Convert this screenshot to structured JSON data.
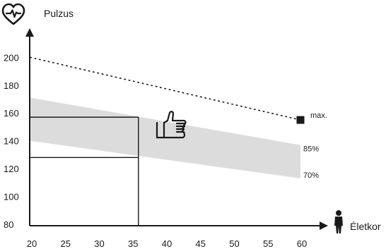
{
  "chart_data": {
    "type": "line",
    "ylabel": "Pulzus",
    "xlabel": "Életkor",
    "x": [
      20,
      25,
      30,
      35,
      40,
      45,
      50,
      55,
      60
    ],
    "y_ticks": [
      80,
      100,
      120,
      140,
      160,
      180,
      200
    ],
    "xlim": [
      20,
      64
    ],
    "ylim": [
      70,
      210
    ],
    "max_line": {
      "label": "max.",
      "points": [
        [
          20,
          200
        ],
        [
          60,
          155
        ]
      ],
      "style": "dotted"
    },
    "zone": {
      "upper": {
        "label": "85%",
        "points": [
          [
            20,
            171
          ],
          [
            60,
            137
          ]
        ]
      },
      "lower": {
        "label": "70%",
        "points": [
          [
            20,
            140
          ],
          [
            60,
            113
          ]
        ]
      },
      "color": "#dcdcdc"
    },
    "example": {
      "age": 36,
      "upper_pulse": 157,
      "lower_pulse": 128
    },
    "icons": [
      "heart-pulse-icon",
      "thumbs-up-icon",
      "person-icon"
    ]
  }
}
